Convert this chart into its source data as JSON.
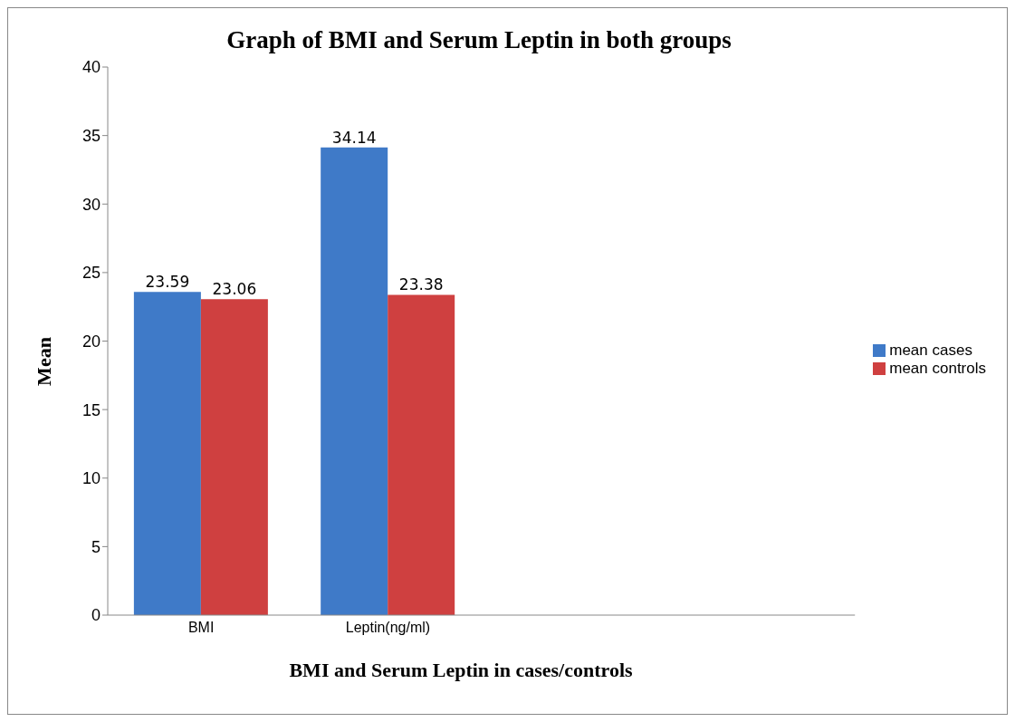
{
  "chart_data": {
    "type": "bar",
    "title": "Graph of BMI and Serum Leptin in both groups",
    "xlabel": "BMI and Serum Leptin in cases/controls",
    "ylabel": "Mean",
    "categories": [
      "BMI",
      "Leptin(ng/ml)",
      null,
      null
    ],
    "series": [
      {
        "name": "mean cases",
        "color": "#3f7ac8",
        "values": [
          23.59,
          34.14,
          null,
          null
        ]
      },
      {
        "name": "mean controls",
        "color": "#cf4040",
        "values": [
          23.06,
          23.38,
          null,
          null
        ]
      }
    ],
    "ylim": [
      0,
      40
    ],
    "yticks": [
      0,
      5,
      10,
      15,
      20,
      25,
      30,
      35,
      40
    ],
    "grid": false,
    "legend": "right",
    "data_labels": true
  }
}
